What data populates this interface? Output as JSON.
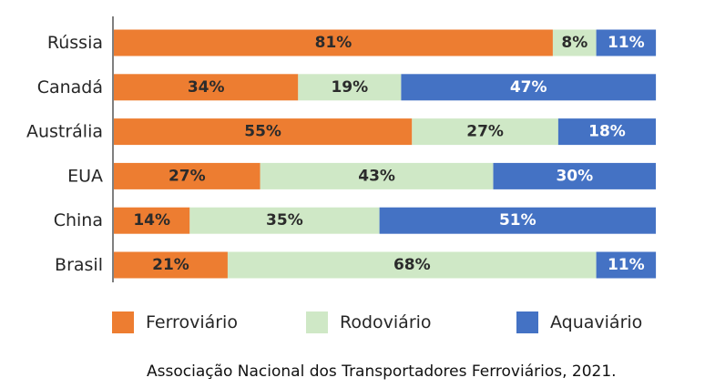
{
  "chart_data": {
    "type": "bar",
    "orientation": "horizontal",
    "stacked": true,
    "categories": [
      "Rússia",
      "Canadá",
      "Austrália",
      "EUA",
      "China",
      "Brasil"
    ],
    "series": [
      {
        "name": "Ferroviário",
        "color": "#ed7d31",
        "label_color": "#2b2b2b",
        "values": [
          81,
          34,
          55,
          27,
          14,
          21
        ],
        "labels": [
          "81%",
          "34%",
          "55%",
          "27%",
          "14%",
          "21%"
        ]
      },
      {
        "name": "Rodoviário",
        "color": "#cfe8c6",
        "label_color": "#2b2b2b",
        "values": [
          8,
          19,
          27,
          43,
          35,
          68
        ],
        "labels": [
          "8%",
          "19%",
          "27%",
          "43%",
          "35%",
          "68%"
        ]
      },
      {
        "name": "Aquaviário",
        "color": "#4472c4",
        "label_color": "#ffffff",
        "values": [
          11,
          47,
          18,
          30,
          51,
          11
        ],
        "labels": [
          "11%",
          "47%",
          "18%",
          "30%",
          "51%",
          "11%"
        ]
      }
    ],
    "xlim": [
      0,
      100
    ],
    "grid": false,
    "legend_position": "bottom"
  },
  "source": "Associação Nacional dos Transportadores Ferroviários, 2021."
}
